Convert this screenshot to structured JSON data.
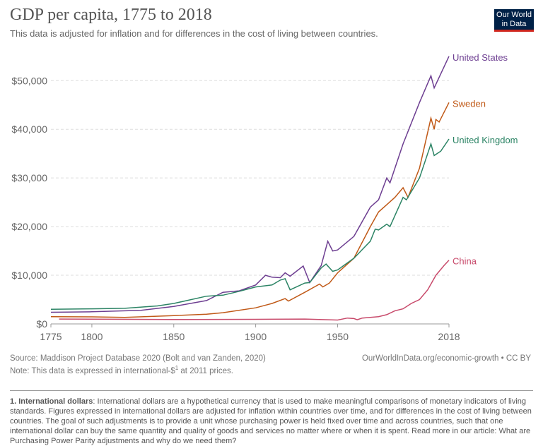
{
  "header": {
    "title": "GDP per capita, 1775 to 2018",
    "subtitle": "This data is adjusted for inflation and for differences in the cost of living between countries.",
    "logo": "Our World in Data"
  },
  "footer": {
    "source": "Source: Maddison Project Database 2020 (Bolt and van Zanden, 2020)",
    "note_pre": "Note: This data is expressed in international-$",
    "note_sup": "1",
    "note_post": " at 2011 prices.",
    "credit": "OurWorldInData.org/economic-growth • CC BY"
  },
  "footnote": {
    "label": "1. International dollars",
    "text": ": International dollars are a hypothetical currency that is used to make meaningful comparisons of monetary indicators of living standards. Figures expressed in international dollars are adjusted for inflation within countries over time, and for differences in the cost of living between countries. The goal of such adjustments is to provide a unit whose purchasing power is held fixed over time and across countries, such that one international dollar can buy the same quantity and quality of goods and services no matter where or when it is spent. Read more in our article: What are Purchasing Power Parity adjustments and why do we need them?"
  },
  "chart_data": {
    "type": "line",
    "title": "GDP per capita, 1775 to 2018",
    "xlim": [
      1775,
      2018
    ],
    "ylim": [
      0,
      55000
    ],
    "xticks": [
      1775,
      1800,
      1850,
      1900,
      1950,
      2018
    ],
    "yticks": [
      {
        "v": 0,
        "label": "$0"
      },
      {
        "v": 10000,
        "label": "$10,000"
      },
      {
        "v": 20000,
        "label": "$20,000"
      },
      {
        "v": 30000,
        "label": "$30,000"
      },
      {
        "v": 40000,
        "label": "$40,000"
      },
      {
        "v": 50000,
        "label": "$50,000"
      }
    ],
    "grid": "horizontal dashed",
    "legend": "line-end labels",
    "series": [
      {
        "name": "United States",
        "color": "#6d3e91",
        "points": [
          [
            1775,
            2400
          ],
          [
            1800,
            2500
          ],
          [
            1830,
            2800
          ],
          [
            1850,
            3600
          ],
          [
            1870,
            4800
          ],
          [
            1880,
            6500
          ],
          [
            1890,
            6800
          ],
          [
            1900,
            8000
          ],
          [
            1906,
            10000
          ],
          [
            1910,
            9600
          ],
          [
            1915,
            9500
          ],
          [
            1918,
            10500
          ],
          [
            1921,
            9800
          ],
          [
            1929,
            11900
          ],
          [
            1933,
            8500
          ],
          [
            1940,
            12000
          ],
          [
            1944,
            17000
          ],
          [
            1947,
            15000
          ],
          [
            1950,
            15200
          ],
          [
            1960,
            18000
          ],
          [
            1970,
            24000
          ],
          [
            1975,
            25500
          ],
          [
            1980,
            30000
          ],
          [
            1982,
            29000
          ],
          [
            1990,
            37000
          ],
          [
            2000,
            45500
          ],
          [
            2007,
            51000
          ],
          [
            2009,
            48500
          ],
          [
            2018,
            55000
          ]
        ]
      },
      {
        "name": "Sweden",
        "color": "#c05917",
        "points": [
          [
            1775,
            1500
          ],
          [
            1800,
            1450
          ],
          [
            1820,
            1350
          ],
          [
            1850,
            1700
          ],
          [
            1870,
            2000
          ],
          [
            1880,
            2300
          ],
          [
            1900,
            3300
          ],
          [
            1910,
            4200
          ],
          [
            1918,
            5200
          ],
          [
            1920,
            4700
          ],
          [
            1930,
            6500
          ],
          [
            1939,
            8200
          ],
          [
            1941,
            7600
          ],
          [
            1945,
            8400
          ],
          [
            1950,
            10500
          ],
          [
            1960,
            13500
          ],
          [
            1970,
            20000
          ],
          [
            1975,
            23000
          ],
          [
            1980,
            24500
          ],
          [
            1985,
            26000
          ],
          [
            1990,
            28000
          ],
          [
            1993,
            26000
          ],
          [
            2000,
            32000
          ],
          [
            2007,
            42300
          ],
          [
            2009,
            40000
          ],
          [
            2010,
            42000
          ],
          [
            2012,
            41500
          ],
          [
            2018,
            45500
          ]
        ]
      },
      {
        "name": "United Kingdom",
        "color": "#2c8465",
        "points": [
          [
            1775,
            3000
          ],
          [
            1800,
            3100
          ],
          [
            1820,
            3200
          ],
          [
            1840,
            3700
          ],
          [
            1850,
            4200
          ],
          [
            1870,
            5700
          ],
          [
            1880,
            5900
          ],
          [
            1890,
            6700
          ],
          [
            1900,
            7600
          ],
          [
            1910,
            8000
          ],
          [
            1915,
            9000
          ],
          [
            1918,
            9300
          ],
          [
            1921,
            7000
          ],
          [
            1930,
            8400
          ],
          [
            1933,
            8500
          ],
          [
            1940,
            11500
          ],
          [
            1943,
            12300
          ],
          [
            1947,
            10800
          ],
          [
            1950,
            11100
          ],
          [
            1960,
            13500
          ],
          [
            1970,
            17000
          ],
          [
            1973,
            19500
          ],
          [
            1975,
            19300
          ],
          [
            1980,
            20500
          ],
          [
            1982,
            20000
          ],
          [
            1990,
            26000
          ],
          [
            1992,
            25500
          ],
          [
            2000,
            30000
          ],
          [
            2007,
            37000
          ],
          [
            2009,
            34600
          ],
          [
            2013,
            35500
          ],
          [
            2018,
            38000
          ]
        ]
      },
      {
        "name": "China",
        "color": "#c84a6b",
        "points": [
          [
            1780,
            1000
          ],
          [
            1850,
            900
          ],
          [
            1900,
            950
          ],
          [
            1930,
            1000
          ],
          [
            1950,
            800
          ],
          [
            1956,
            1200
          ],
          [
            1960,
            1100
          ],
          [
            1962,
            850
          ],
          [
            1965,
            1200
          ],
          [
            1975,
            1500
          ],
          [
            1980,
            1900
          ],
          [
            1985,
            2700
          ],
          [
            1990,
            3100
          ],
          [
            1995,
            4200
          ],
          [
            2000,
            5000
          ],
          [
            2005,
            7000
          ],
          [
            2010,
            10000
          ],
          [
            2015,
            12000
          ],
          [
            2018,
            13100
          ]
        ]
      }
    ]
  }
}
